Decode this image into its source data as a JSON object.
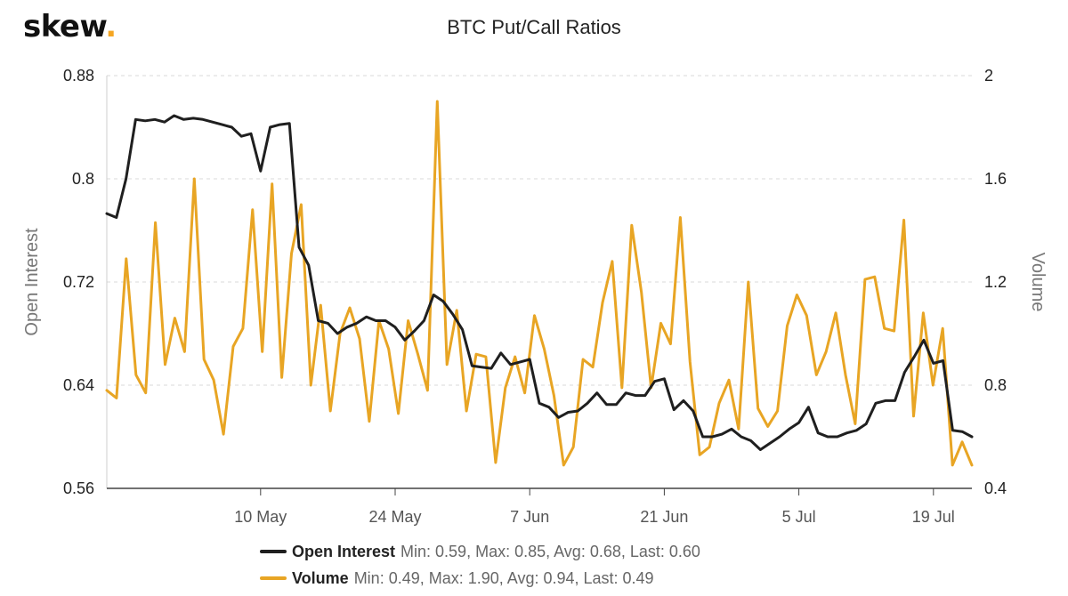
{
  "brand": {
    "name": "skew",
    "dot": "."
  },
  "chart_data": {
    "type": "line",
    "title": "BTC Put/Call Ratios",
    "xlabel": "",
    "x_tick_labels": [
      "10 May",
      "24 May",
      "7 Jun",
      "21 Jun",
      "5 Jul",
      "19 Jul"
    ],
    "y_left": {
      "label": "Open Interest",
      "range": [
        0.56,
        0.88
      ],
      "ticks": [
        "0.56",
        "0.64",
        "0.72",
        "0.8",
        "0.88"
      ]
    },
    "y_right": {
      "label": "Volume",
      "range": [
        0.4,
        2.0
      ],
      "ticks": [
        "0.4",
        "0.8",
        "1.2",
        "1.6",
        "2"
      ]
    },
    "grid": "horizontal dashed",
    "legend_placement": "bottom",
    "series": [
      {
        "name": "Open Interest",
        "axis": "left",
        "color": "#1f1f1f",
        "stats_text": "Min: 0.59, Max: 0.85, Avg: 0.68, Last: 0.60",
        "values": [
          0.773,
          0.77,
          0.8,
          0.846,
          0.845,
          0.846,
          0.844,
          0.849,
          0.846,
          0.847,
          0.846,
          0.844,
          0.842,
          0.84,
          0.833,
          0.835,
          0.806,
          0.84,
          0.842,
          0.843,
          0.747,
          0.733,
          0.69,
          0.688,
          0.68,
          0.685,
          0.688,
          0.693,
          0.69,
          0.69,
          0.685,
          0.675,
          0.682,
          0.69,
          0.71,
          0.705,
          0.695,
          0.683,
          0.655,
          0.654,
          0.653,
          0.665,
          0.656,
          0.658,
          0.66,
          0.626,
          0.623,
          0.615,
          0.619,
          0.62,
          0.626,
          0.634,
          0.625,
          0.625,
          0.634,
          0.632,
          0.632,
          0.643,
          0.645,
          0.621,
          0.628,
          0.62,
          0.6,
          0.6,
          0.602,
          0.606,
          0.6,
          0.597,
          0.59,
          0.595,
          0.6,
          0.606,
          0.611,
          0.623,
          0.603,
          0.6,
          0.6,
          0.603,
          0.605,
          0.61,
          0.626,
          0.628,
          0.628,
          0.65,
          0.662,
          0.675,
          0.657,
          0.659,
          0.605,
          0.604,
          0.6
        ]
      },
      {
        "name": "Volume",
        "axis": "right",
        "color": "#e8a524",
        "stats_text": "Min: 0.49, Max: 1.90, Avg: 0.94, Last: 0.49",
        "values": [
          0.78,
          0.75,
          1.29,
          0.84,
          0.77,
          1.43,
          0.88,
          1.06,
          0.93,
          1.6,
          0.9,
          0.82,
          0.61,
          0.95,
          1.02,
          1.48,
          0.93,
          1.58,
          0.83,
          1.31,
          1.5,
          0.8,
          1.11,
          0.7,
          1.0,
          1.1,
          0.98,
          0.66,
          1.05,
          0.94,
          0.69,
          1.05,
          0.92,
          0.78,
          1.9,
          0.88,
          1.09,
          0.7,
          0.92,
          0.91,
          0.5,
          0.79,
          0.91,
          0.77,
          1.07,
          0.94,
          0.76,
          0.49,
          0.56,
          0.9,
          0.87,
          1.12,
          1.28,
          0.79,
          1.42,
          1.16,
          0.79,
          1.04,
          0.96,
          1.45,
          0.89,
          0.53,
          0.56,
          0.73,
          0.82,
          0.63,
          1.2,
          0.71,
          0.64,
          0.7,
          1.03,
          1.15,
          1.07,
          0.84,
          0.93,
          1.08,
          0.84,
          0.65,
          1.21,
          1.22,
          1.02,
          1.01,
          1.44,
          0.68,
          1.08,
          0.8,
          1.02,
          0.49,
          0.58,
          0.49
        ]
      }
    ]
  }
}
